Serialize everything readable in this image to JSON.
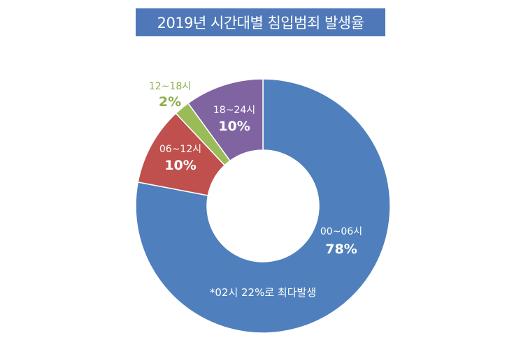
{
  "chart_data": {
    "type": "pie",
    "title": "2019년 시간대별 침입범죄 발생율",
    "slices": [
      {
        "label": "00~06시",
        "value": 78,
        "value_label": "78%",
        "color": "#4f80bd"
      },
      {
        "label": "06~12시",
        "value": 10,
        "value_label": "10%",
        "color": "#c0504d"
      },
      {
        "label": "12~18시",
        "value": 2,
        "value_label": "2%",
        "color": "#9bbb59"
      },
      {
        "label": "18~24시",
        "value": 10,
        "value_label": "10%",
        "color": "#8064a2"
      }
    ],
    "annotation": "*02시 22%로 최다발생",
    "donut": true
  }
}
